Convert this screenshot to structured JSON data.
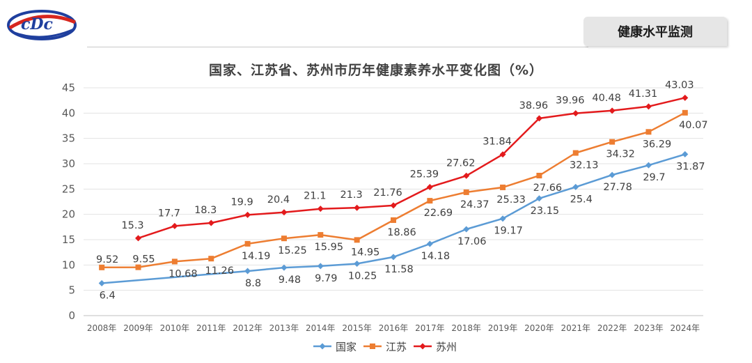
{
  "header": {
    "badge_text": "健康水平监测",
    "logo_icon": "cdc-logo-icon"
  },
  "colors": {
    "national": "#5b9bd5",
    "jiangsu": "#ed7d31",
    "suzhou": "#e31a1c",
    "grid": "#e3e3e3",
    "axis": "#bfbfbf"
  },
  "chart_data": {
    "type": "line",
    "title": "国家、江苏省、苏州市历年健康素养水平变化图（%）",
    "categories": [
      "2008年",
      "2009年",
      "2010年",
      "2011年",
      "2012年",
      "2013年",
      "2014年",
      "2015年",
      "2016年",
      "2017年",
      "2018年",
      "2019年",
      "2020年",
      "2021年",
      "2022年",
      "2023年",
      "2024年"
    ],
    "y_ticks": [
      "0",
      "5",
      "10",
      "15",
      "20",
      "25",
      "30",
      "35",
      "40",
      "45"
    ],
    "ylim": [
      0,
      45
    ],
    "grid": true,
    "legend_position": "bottom",
    "series": [
      {
        "key": "national",
        "name": "国家",
        "marker": "diamond",
        "points": [
          {
            "i": 0,
            "v": 6.4,
            "label": "6.4"
          },
          {
            "i": 5,
            "v": 9.48,
            "label": "9.48"
          },
          {
            "i": 4,
            "v": 8.8,
            "label": "8.8"
          },
          {
            "i": 6,
            "v": 9.79,
            "label": "9.79"
          },
          {
            "i": 7,
            "v": 10.25,
            "label": "10.25"
          },
          {
            "i": 8,
            "v": 11.58,
            "label": "11.58"
          },
          {
            "i": 9,
            "v": 14.18,
            "label": "14.18"
          },
          {
            "i": 10,
            "v": 17.06,
            "label": "17.06"
          },
          {
            "i": 11,
            "v": 19.17,
            "label": "19.17"
          },
          {
            "i": 12,
            "v": 23.15,
            "label": "23.15"
          },
          {
            "i": 13,
            "v": 25.4,
            "label": "25.4"
          },
          {
            "i": 14,
            "v": 27.78,
            "label": "27.78"
          },
          {
            "i": 15,
            "v": 29.7,
            "label": "29.7"
          },
          {
            "i": 16,
            "v": 31.87,
            "label": "31.87"
          }
        ]
      },
      {
        "key": "jiangsu",
        "name": "江苏",
        "marker": "square",
        "points": [
          {
            "i": 0,
            "v": 9.52,
            "label": "9.52"
          },
          {
            "i": 1,
            "v": 9.55,
            "label": "9.55"
          },
          {
            "i": 2,
            "v": 10.68,
            "label": "10.68"
          },
          {
            "i": 3,
            "v": 11.26,
            "label": "11.26"
          },
          {
            "i": 4,
            "v": 14.19,
            "label": "14.19"
          },
          {
            "i": 5,
            "v": 15.25,
            "label": "15.25"
          },
          {
            "i": 6,
            "v": 15.95,
            "label": "15.95"
          },
          {
            "i": 7,
            "v": 14.95,
            "label": "14.95"
          },
          {
            "i": 8,
            "v": 18.86,
            "label": "18.86"
          },
          {
            "i": 9,
            "v": 22.69,
            "label": "22.69"
          },
          {
            "i": 10,
            "v": 24.37,
            "label": "24.37"
          },
          {
            "i": 11,
            "v": 25.33,
            "label": "25.33"
          },
          {
            "i": 12,
            "v": 27.66,
            "label": "27.66"
          },
          {
            "i": 13,
            "v": 32.13,
            "label": "32.13"
          },
          {
            "i": 14,
            "v": 34.32,
            "label": "34.32"
          },
          {
            "i": 15,
            "v": 36.29,
            "label": "36.29"
          },
          {
            "i": 16,
            "v": 40.07,
            "label": "40.07"
          }
        ]
      },
      {
        "key": "suzhou",
        "name": "苏州",
        "marker": "diamond",
        "points": [
          {
            "i": 1,
            "v": 15.3,
            "label": "15.3"
          },
          {
            "i": 2,
            "v": 17.7,
            "label": "17.7"
          },
          {
            "i": 3,
            "v": 18.3,
            "label": "18.3"
          },
          {
            "i": 4,
            "v": 19.9,
            "label": "19.9"
          },
          {
            "i": 5,
            "v": 20.4,
            "label": "20.4"
          },
          {
            "i": 6,
            "v": 21.1,
            "label": "21.1"
          },
          {
            "i": 7,
            "v": 21.3,
            "label": "21.3"
          },
          {
            "i": 8,
            "v": 21.76,
            "label": "21.76"
          },
          {
            "i": 9,
            "v": 25.39,
            "label": "25.39"
          },
          {
            "i": 10,
            "v": 27.62,
            "label": "27.62"
          },
          {
            "i": 11,
            "v": 31.84,
            "label": "31.84"
          },
          {
            "i": 12,
            "v": 38.96,
            "label": "38.96"
          },
          {
            "i": 13,
            "v": 39.96,
            "label": "39.96"
          },
          {
            "i": 14,
            "v": 40.48,
            "label": "40.48"
          },
          {
            "i": 15,
            "v": 41.31,
            "label": "41.31"
          },
          {
            "i": 16,
            "v": 43.03,
            "label": "43.03"
          }
        ]
      }
    ]
  }
}
